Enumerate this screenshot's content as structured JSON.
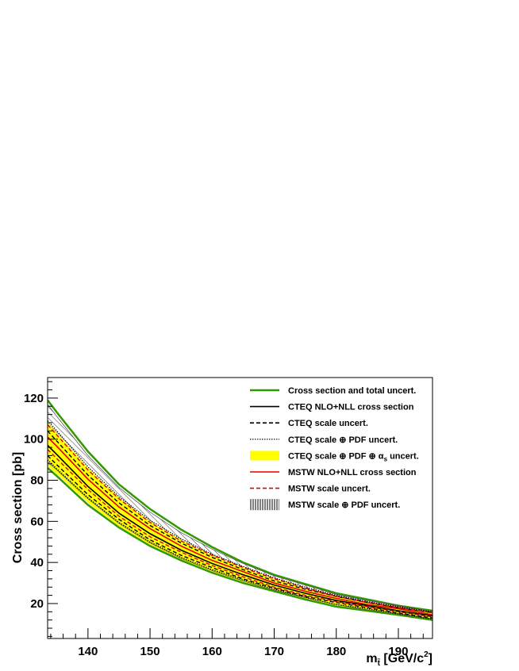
{
  "chart_data": {
    "type": "line",
    "xlabel": "m",
    "xlabel_subscript": "t̃",
    "xlabel_unit_prefix": " [GeV/c",
    "xlabel_unit_power": "2",
    "xlabel_unit_suffix": "]",
    "ylabel": "Cross section [pb]",
    "xlim": [
      133.5,
      195.5
    ],
    "ylim": [
      3,
      130
    ],
    "x_ticks": [
      140,
      150,
      160,
      170,
      180,
      190
    ],
    "y_ticks": [
      20,
      40,
      60,
      80,
      100,
      120
    ],
    "grid": false,
    "legend_position": "top-right",
    "x": [
      133.5,
      135,
      140,
      145,
      150,
      155,
      160,
      165,
      170,
      175,
      180,
      185,
      190,
      195.5
    ],
    "series": [
      {
        "name": "Cross section and total uncert.",
        "role": "total_upper",
        "color": "#339900",
        "values": [
          119,
          113,
          94,
          78,
          66,
          56,
          47.5,
          40,
          34,
          29.5,
          25,
          22,
          19,
          16.5
        ]
      },
      {
        "name": "",
        "role": "total_lower",
        "color": "#339900",
        "values": [
          86,
          82,
          68,
          57,
          48,
          41,
          35,
          30,
          26,
          22,
          18.5,
          16.5,
          14.5,
          12
        ]
      },
      {
        "name": "CTEQ NLO+NLL cross section",
        "role": "cteq_central",
        "color": "#000000",
        "values": [
          97,
          92.5,
          77,
          64,
          54,
          46,
          39.5,
          34,
          29,
          25,
          21.5,
          19,
          16.5,
          14
        ]
      },
      {
        "name": "CTEQ scale uncert.",
        "role": "cteq_scale_upper",
        "color": "#000000",
        "values": [
          104,
          99,
          82.5,
          69,
          58,
          49.5,
          42.5,
          36.5,
          31,
          27,
          23.5,
          20.5,
          18,
          15.5
        ]
      },
      {
        "name": "",
        "role": "cteq_scale_lower",
        "color": "#000000",
        "values": [
          92,
          87.5,
          73,
          61,
          51,
          43.5,
          37.5,
          32,
          27.5,
          23.5,
          20.5,
          18,
          15.5,
          13
        ]
      },
      {
        "name": "CTEQ scale ⊕ PDF uncert.",
        "role": "cteq_scalepdf_upper",
        "color": "#000000",
        "values": [
          109,
          104,
          86.5,
          72,
          60.5,
          51.5,
          44,
          38,
          32.5,
          28,
          24,
          21,
          18.5,
          16
        ]
      },
      {
        "name": "",
        "role": "cteq_scalepdf_lower",
        "color": "#000000",
        "values": [
          90,
          85.5,
          71.5,
          59.5,
          50,
          42.5,
          36.5,
          31.5,
          27,
          23,
          19.5,
          17.5,
          15,
          12.5
        ]
      },
      {
        "name": "CTEQ scale ⊕ PDF ⊕ α uncert.",
        "role": "cteq_band_upper",
        "color": "#ffff00",
        "values": [
          108,
          103,
          86,
          71.5,
          60,
          51,
          43.5,
          37.5,
          32,
          27.5,
          23.5,
          20.5,
          18,
          15.5
        ]
      },
      {
        "name": "",
        "role": "cteq_band_lower",
        "color": "#ffff00",
        "values": [
          87,
          83,
          69,
          57.5,
          48.5,
          41.5,
          35.5,
          30.5,
          26.5,
          22.5,
          19,
          17,
          14.5,
          12.5
        ]
      },
      {
        "name": "MSTW NLO+NLL cross section",
        "role": "mstw_central",
        "color": "#dd0000",
        "values": [
          101,
          96.5,
          80.5,
          67,
          56.5,
          48,
          41,
          35.5,
          30,
          26,
          22.5,
          19.5,
          17.5,
          14.5
        ]
      },
      {
        "name": "MSTW scale uncert.",
        "role": "mstw_scale_upper",
        "color": "#dd0000",
        "values": [
          107,
          102,
          85,
          71,
          59.5,
          50.5,
          43.5,
          37.5,
          32,
          27.5,
          23.5,
          20.5,
          18,
          15.5
        ]
      },
      {
        "name": "",
        "role": "mstw_scale_lower",
        "color": "#dd0000",
        "values": [
          95,
          90.5,
          75.5,
          62.5,
          52.5,
          45,
          38.5,
          33,
          28,
          24,
          21,
          18.5,
          16,
          13.5
        ]
      },
      {
        "name": "MSTW scale ⊕ PDF uncert.",
        "role": "mstw_hatch_upper",
        "color": "#000000",
        "values": [
          117,
          111,
          92,
          76.5,
          64.5,
          54.5,
          46.5,
          39.5,
          33.5,
          29,
          24.5,
          21.5,
          19,
          16
        ]
      },
      {
        "name": "",
        "role": "mstw_hatch_lower",
        "color": "#000000",
        "values": [
          89,
          85,
          71,
          59,
          49.5,
          42,
          36,
          31,
          26.5,
          23,
          19.5,
          17,
          15,
          12.5
        ]
      }
    ],
    "legend": [
      {
        "label": "Cross section and total uncert.",
        "style": "solid",
        "color": "#339900"
      },
      {
        "label": "CTEQ NLO+NLL cross section",
        "style": "solid",
        "color": "#000000"
      },
      {
        "label": "CTEQ scale uncert.",
        "style": "dashed",
        "color": "#000000"
      },
      {
        "label": "CTEQ scale ⊕ PDF uncert.",
        "style": "dotted",
        "color": "#000000"
      },
      {
        "label": "CTEQ scale ⊕ PDF ⊕ α",
        "label_sub": "s",
        "label_suffix": " uncert.",
        "style": "fill",
        "color": "#ffff00"
      },
      {
        "label": "MSTW NLO+NLL cross section",
        "style": "solid",
        "color": "#dd0000"
      },
      {
        "label": "MSTW scale uncert.",
        "style": "dashed",
        "color": "#dd0000"
      },
      {
        "label": "MSTW scale ⊕ PDF uncert.",
        "style": "hatch",
        "color": "#000000"
      }
    ]
  }
}
